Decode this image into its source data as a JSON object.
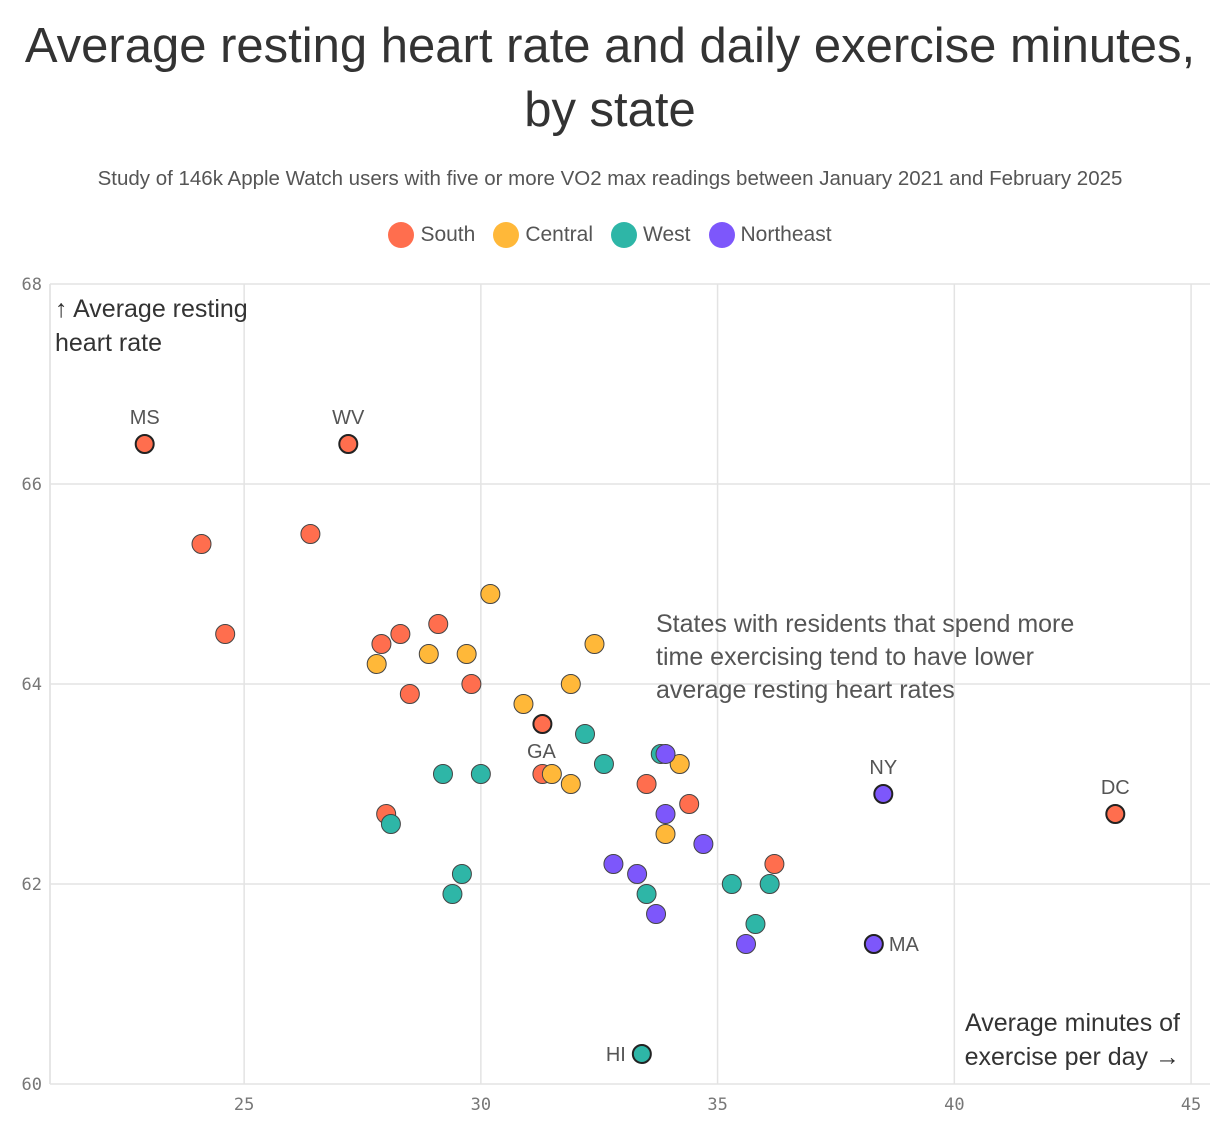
{
  "chart_data": {
    "type": "scatter",
    "title": "Average resting heart rate and daily exercise minutes, by state",
    "subtitle": "Study of 146k Apple Watch users with five or more VO2 max readings between January 2021 and February 2025",
    "xlabel": "Average minutes of exercise per day →",
    "ylabel": "↑ Average resting heart rate",
    "xlim": [
      20.9,
      45.4
    ],
    "ylim": [
      60,
      68
    ],
    "xticks": [
      25,
      30,
      35,
      40,
      45
    ],
    "yticks": [
      60,
      62,
      64,
      66,
      68
    ],
    "grid": true,
    "legend_position": "top-center",
    "annotation": "States with residents that spend more time exercising tend to have lower average resting heart rates",
    "series": [
      {
        "name": "South",
        "color": "#ff6e4e",
        "points": [
          {
            "x": 22.9,
            "y": 66.4,
            "label": "MS"
          },
          {
            "x": 27.2,
            "y": 66.4,
            "label": "WV"
          },
          {
            "x": 24.1,
            "y": 65.4
          },
          {
            "x": 26.4,
            "y": 65.5
          },
          {
            "x": 24.6,
            "y": 64.5
          },
          {
            "x": 27.9,
            "y": 64.4
          },
          {
            "x": 28.3,
            "y": 64.5
          },
          {
            "x": 29.1,
            "y": 64.6
          },
          {
            "x": 28.5,
            "y": 63.9
          },
          {
            "x": 29.8,
            "y": 64.0
          },
          {
            "x": 31.3,
            "y": 63.6,
            "label": "GA"
          },
          {
            "x": 31.3,
            "y": 63.1
          },
          {
            "x": 28.0,
            "y": 62.7
          },
          {
            "x": 33.5,
            "y": 63.0
          },
          {
            "x": 34.4,
            "y": 62.8
          },
          {
            "x": 36.2,
            "y": 62.2
          },
          {
            "x": 43.4,
            "y": 62.7,
            "label": "DC"
          }
        ]
      },
      {
        "name": "Central",
        "color": "#ffb839",
        "points": [
          {
            "x": 30.2,
            "y": 64.9
          },
          {
            "x": 27.8,
            "y": 64.2
          },
          {
            "x": 28.9,
            "y": 64.3
          },
          {
            "x": 29.7,
            "y": 64.3
          },
          {
            "x": 32.4,
            "y": 64.4
          },
          {
            "x": 31.9,
            "y": 64.0
          },
          {
            "x": 30.9,
            "y": 63.8
          },
          {
            "x": 31.5,
            "y": 63.1
          },
          {
            "x": 31.9,
            "y": 63.0
          },
          {
            "x": 34.2,
            "y": 63.2
          },
          {
            "x": 33.9,
            "y": 62.5
          }
        ]
      },
      {
        "name": "West",
        "color": "#2eb6a7",
        "points": [
          {
            "x": 28.1,
            "y": 62.6
          },
          {
            "x": 29.2,
            "y": 63.1
          },
          {
            "x": 30.0,
            "y": 63.1
          },
          {
            "x": 29.6,
            "y": 62.1
          },
          {
            "x": 29.4,
            "y": 61.9
          },
          {
            "x": 32.2,
            "y": 63.5
          },
          {
            "x": 32.6,
            "y": 63.2
          },
          {
            "x": 33.8,
            "y": 63.3
          },
          {
            "x": 33.5,
            "y": 61.9
          },
          {
            "x": 35.3,
            "y": 62.0
          },
          {
            "x": 36.1,
            "y": 62.0
          },
          {
            "x": 35.8,
            "y": 61.6
          },
          {
            "x": 33.4,
            "y": 60.3,
            "label": "HI"
          }
        ]
      },
      {
        "name": "Northeast",
        "color": "#7d57fb",
        "points": [
          {
            "x": 33.9,
            "y": 63.3
          },
          {
            "x": 33.9,
            "y": 62.7
          },
          {
            "x": 34.7,
            "y": 62.4
          },
          {
            "x": 32.8,
            "y": 62.2
          },
          {
            "x": 33.3,
            "y": 62.1
          },
          {
            "x": 33.7,
            "y": 61.7
          },
          {
            "x": 35.6,
            "y": 61.4
          },
          {
            "x": 38.5,
            "y": 62.9,
            "label": "NY"
          },
          {
            "x": 38.3,
            "y": 61.4,
            "label": "MA"
          }
        ]
      }
    ]
  }
}
